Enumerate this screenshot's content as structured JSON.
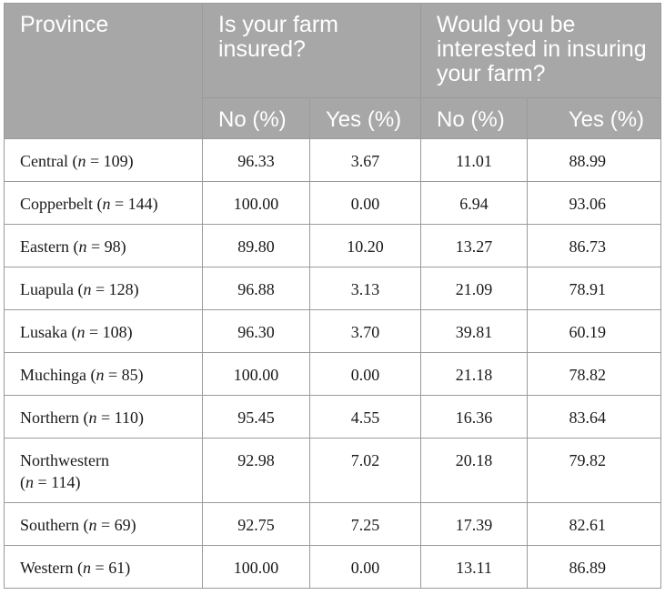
{
  "table": {
    "header": {
      "province": "Province",
      "insured_group": "Is your farm insured?",
      "interest_group": "Would you be interested in insuring your farm?",
      "sub": [
        "No (%)",
        "Yes (%)",
        "No (%)",
        "Yes (%)"
      ]
    },
    "rows": [
      {
        "name": "Central",
        "n": "109",
        "values": [
          "96.33",
          "3.67",
          "11.01",
          "88.99"
        ]
      },
      {
        "name": "Copperbelt",
        "n": "144",
        "values": [
          "100.00",
          "0.00",
          "6.94",
          "93.06"
        ]
      },
      {
        "name": "Eastern",
        "n": "98",
        "values": [
          "89.80",
          "10.20",
          "13.27",
          "86.73"
        ]
      },
      {
        "name": "Luapula",
        "n": "128",
        "values": [
          "96.88",
          "3.13",
          "21.09",
          "78.91"
        ]
      },
      {
        "name": "Lusaka",
        "n": "108",
        "values": [
          "96.30",
          "3.70",
          "39.81",
          "60.19"
        ]
      },
      {
        "name": "Muchinga",
        "n": "85",
        "values": [
          "100.00",
          "0.00",
          "21.18",
          "78.82"
        ]
      },
      {
        "name": "Northern",
        "n": "110",
        "values": [
          "95.45",
          "4.55",
          "16.36",
          "83.64"
        ]
      },
      {
        "name": "Northwestern",
        "n": "114",
        "values": [
          "92.98",
          "7.02",
          "20.18",
          "79.82"
        ]
      },
      {
        "name": "Southern",
        "n": "69",
        "values": [
          "92.75",
          "7.25",
          "17.39",
          "82.61"
        ]
      },
      {
        "name": "Western",
        "n": "61",
        "values": [
          "100.00",
          "0.00",
          "13.11",
          "86.89"
        ]
      }
    ]
  }
}
